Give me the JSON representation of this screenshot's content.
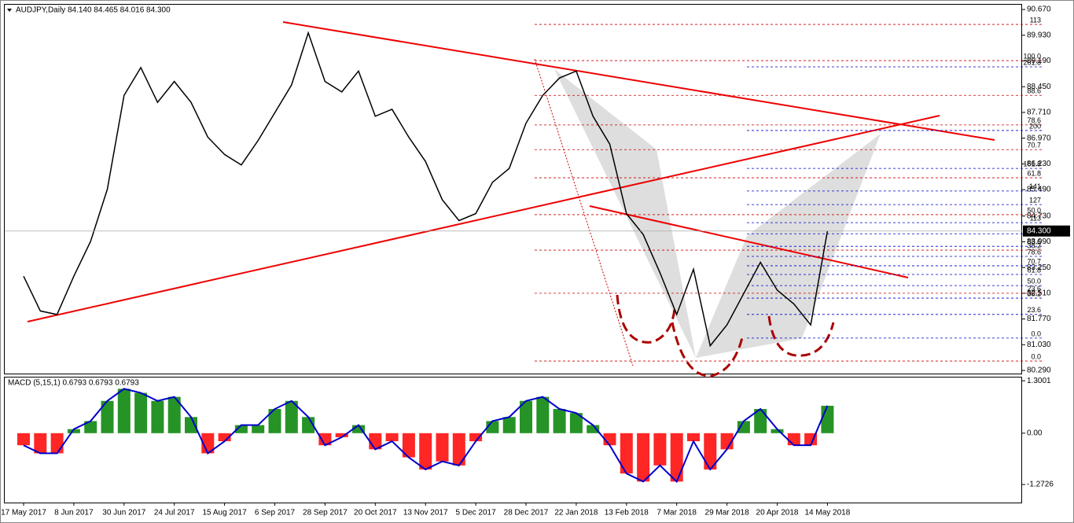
{
  "chart_data": [
    {
      "type": "line",
      "title": "AUDJPY,Daily  84.140 84.465 84.016 84.300",
      "categories": [
        "17 May 2017",
        null,
        null,
        "8 Jun 2017",
        null,
        null,
        "30 Jun 2017",
        null,
        null,
        "24 Jul 2017",
        null,
        null,
        "15 Aug 2017",
        null,
        null,
        "6 Sep 2017",
        null,
        null,
        "28 Sep 2017",
        null,
        null,
        "20 Oct 2017",
        null,
        null,
        "13 Nov 2017",
        null,
        null,
        "5 Dec 2017",
        null,
        null,
        "28 Dec 2017",
        null,
        null,
        "22 Jan 2018",
        null,
        null,
        "13 Feb 2018",
        null,
        null,
        "7 Mar 2018",
        null,
        null,
        "29 Mar 2018",
        null,
        null,
        "20 Apr 2018",
        null,
        null,
        "14 May 2018"
      ],
      "series": [
        {
          "name": "AUDJPY",
          "color": "#000000",
          "values": [
            83.0,
            82.0,
            81.9,
            83.0,
            84.0,
            85.5,
            88.2,
            89.0,
            88.0,
            88.6,
            88.0,
            87.0,
            86.5,
            86.2,
            86.9,
            87.7,
            88.5,
            90.0,
            88.6,
            88.3,
            88.9,
            87.6,
            87.8,
            87.0,
            86.3,
            85.2,
            84.6,
            84.8,
            85.7,
            86.1,
            87.4,
            88.2,
            88.7,
            88.9,
            87.6,
            86.8,
            84.8,
            84.2,
            83.1,
            81.9,
            83.2,
            81.0,
            81.6,
            82.5,
            83.4,
            82.6,
            82.2,
            81.6,
            84.3
          ]
        }
      ],
      "current_price": {
        "value": 84.3,
        "label": "84.300"
      },
      "ylim": [
        80.2,
        90.83
      ],
      "yticks": [
        {
          "value": 90.67,
          "label": "90.670"
        },
        {
          "value": 89.93,
          "label": "89.930"
        },
        {
          "value": 89.19,
          "label": "89.190"
        },
        {
          "value": 88.45,
          "label": "88.450"
        },
        {
          "value": 87.71,
          "label": "87.710"
        },
        {
          "value": 86.97,
          "label": "86.970"
        },
        {
          "value": 86.23,
          "label": "86.230"
        },
        {
          "value": 85.49,
          "label": "85.490"
        },
        {
          "value": 84.73,
          "label": "84.730"
        },
        {
          "value": 83.99,
          "label": "83.990"
        },
        {
          "value": 83.25,
          "label": "83.250"
        },
        {
          "value": 82.51,
          "label": "82.510"
        },
        {
          "value": 81.77,
          "label": "81.770"
        },
        {
          "value": 81.03,
          "label": "81.030"
        },
        {
          "value": 80.29,
          "label": "80.290"
        }
      ],
      "fib_levels": [
        {
          "label": "113",
          "price": 90.24,
          "color": "#cc0000"
        },
        {
          "label": "100.0",
          "price": 89.2,
          "color": "#cc0000"
        },
        {
          "label": "88.6",
          "price": 88.2,
          "color": "#cc0000"
        },
        {
          "label": "78.6",
          "price": 87.35,
          "color": "#cc0000"
        },
        {
          "label": "70.7",
          "price": 86.64,
          "color": "#cc0000"
        },
        {
          "label": "61.8",
          "price": 85.83,
          "color": "#cc0000"
        },
        {
          "label": "50.0",
          "price": 84.77,
          "color": "#cc0000"
        },
        {
          "label": "38.2",
          "price": 83.75,
          "color": "#cc0000"
        },
        {
          "label": "23.6",
          "price": 82.51,
          "color": "#cc0000"
        },
        {
          "label": "0.0",
          "price": 80.56,
          "color": "#cc0000"
        },
        {
          "label": "261.8",
          "price": 89.02,
          "color": "#0000cc"
        },
        {
          "label": "200",
          "price": 87.19,
          "color": "#0000cc"
        },
        {
          "label": "161.8",
          "price": 86.1,
          "color": "#0000cc"
        },
        {
          "label": "141",
          "price": 85.45,
          "color": "#0000cc"
        },
        {
          "label": "127",
          "price": 85.06,
          "color": "#0000cc"
        },
        {
          "label": "113",
          "price": 84.54,
          "color": "#0000cc"
        },
        {
          "label": "100.0",
          "price": 84.22,
          "color": "#0000cc"
        },
        {
          "label": "88.6",
          "price": 83.86,
          "color": "#0000cc"
        },
        {
          "label": "78.6",
          "price": 83.57,
          "color": "#0000cc"
        },
        {
          "label": "70.7",
          "price": 83.3,
          "color": "#0000cc"
        },
        {
          "label": "61.8",
          "price": 83.05,
          "color": "#0000cc"
        },
        {
          "label": "50.0",
          "price": 82.73,
          "color": "#0000cc"
        },
        {
          "label": "38.2",
          "price": 82.37,
          "color": "#0000cc"
        },
        {
          "label": "23.6",
          "price": 81.9,
          "color": "#0000cc"
        },
        {
          "label": "0.0",
          "price": 81.22,
          "color": "#0000cc"
        }
      ]
    },
    {
      "type": "bar",
      "title": "MACD (5,15,1) 0.6793 0.6793 0.6793",
      "series": [
        {
          "name": "MACD",
          "color": "#008000",
          "negative_color": "#ff0000",
          "line_color": "#0000cc",
          "values": [
            -0.3,
            -0.5,
            -0.5,
            0.1,
            0.3,
            0.8,
            1.1,
            1.0,
            0.8,
            0.9,
            0.4,
            -0.5,
            -0.2,
            0.2,
            0.2,
            0.6,
            0.8,
            0.4,
            -0.3,
            -0.1,
            0.2,
            -0.4,
            -0.2,
            -0.6,
            -0.9,
            -0.7,
            -0.8,
            -0.2,
            0.3,
            0.4,
            0.8,
            0.9,
            0.6,
            0.5,
            0.2,
            -0.3,
            -1.0,
            -1.2,
            -0.8,
            -1.2,
            -0.2,
            -0.9,
            -0.4,
            0.3,
            0.6,
            0.1,
            -0.3,
            -0.3,
            0.68
          ]
        }
      ],
      "ylim": [
        -1.72,
        1.4
      ],
      "yticks": [
        1.3001,
        {
          "value": 0,
          "label": "0.00"
        },
        -1.2726
      ]
    }
  ]
}
